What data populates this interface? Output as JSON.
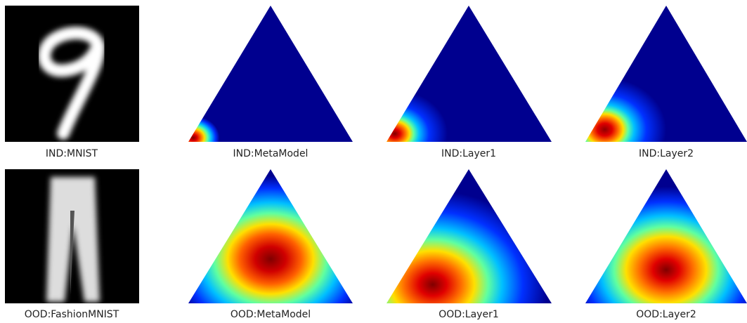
{
  "panels": [
    {
      "label": "IND:MNIST"
    },
    {
      "label": "IND:MetaModel"
    },
    {
      "label": "IND:Layer1"
    },
    {
      "label": "IND:Layer2"
    },
    {
      "label": "OOD:FashionMNIST"
    },
    {
      "label": "OOD:MetaModel"
    },
    {
      "label": "OOD:Layer1"
    },
    {
      "label": "OOD:Layer2"
    }
  ]
}
